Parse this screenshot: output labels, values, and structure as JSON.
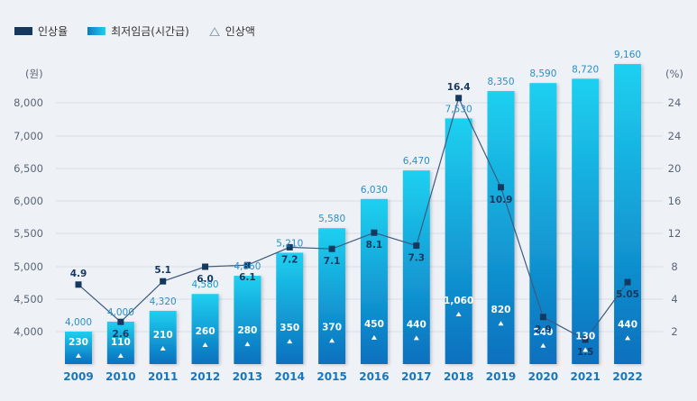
{
  "legend": {
    "rate_label": "인상율",
    "wage_label": "최저임금(시간급)",
    "increase_label": "인상액"
  },
  "chart_data": {
    "type": "bar",
    "categories": [
      "2009",
      "2010",
      "2011",
      "2012",
      "2013",
      "2014",
      "2015",
      "2016",
      "2017",
      "2018",
      "2019",
      "2020",
      "2021",
      "2022"
    ],
    "series": [
      {
        "name": "최저임금(시간급)",
        "values": [
          4000,
          4000,
          4320,
          4580,
          4860,
          5210,
          5580,
          6030,
          6470,
          7530,
          8350,
          8590,
          8720,
          9160
        ],
        "labels": [
          "4,000",
          "4,000",
          "4,320",
          "4,580",
          "4,860",
          "5,210",
          "5,580",
          "6,030",
          "6,470",
          "7,530",
          "8,350",
          "8,590",
          "8,720",
          "9,160"
        ]
      },
      {
        "name": "인상액",
        "values": [
          230,
          110,
          210,
          260,
          280,
          350,
          370,
          450,
          440,
          1060,
          820,
          240,
          130,
          440
        ],
        "labels": [
          "230",
          "110",
          "210",
          "260",
          "280",
          "350",
          "370",
          "450",
          "440",
          "1,060",
          "820",
          "240",
          "130",
          "440"
        ]
      },
      {
        "name": "인상율",
        "values": [
          4.9,
          2.6,
          5.1,
          6.0,
          6.1,
          7.2,
          7.1,
          8.1,
          7.3,
          16.4,
          10.9,
          2.9,
          1.5,
          5.05
        ],
        "labels": [
          "4.9",
          "2.6",
          "5.1",
          "6.0",
          "6.1",
          "7.2",
          "7.1",
          "8.1",
          "7.3",
          "16.4",
          "10.9",
          "2.9",
          "1.5",
          "5.05"
        ]
      }
    ],
    "y_left": {
      "unit": "(원)",
      "ticks": [
        "4,000",
        "4,500",
        "5,000",
        "5,500",
        "6,000",
        "6,500",
        "7,000",
        "8,000"
      ]
    },
    "y_right": {
      "unit": "(%)",
      "ticks": [
        "2",
        "4",
        "8",
        "12",
        "16",
        "20",
        "24",
        "24"
      ]
    },
    "colors": {
      "bar_top": "#1ed0f0",
      "bar_bottom": "#0a70be",
      "line": "#3d5a7e",
      "marker": "#15385f",
      "axis_text": "#5a6675",
      "year_text": "#1a76b8",
      "wage_label": "#2a8fc9",
      "grid": "#d9dee6"
    }
  }
}
